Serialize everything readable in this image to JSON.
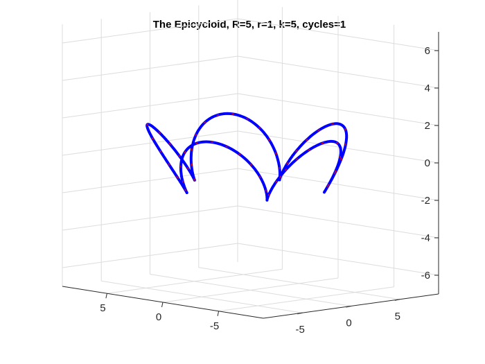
{
  "chart_data": {
    "type": "line3d",
    "title": "The Epicycloid, R=5, r=1, k=5, cycles=1",
    "xlim": [
      -9,
      9
    ],
    "ylim": [
      -9,
      9
    ],
    "zlim": [
      -7,
      7
    ],
    "xticks": [
      -5,
      0,
      5
    ],
    "yticks": [
      -5,
      0,
      5
    ],
    "zticks": [
      -6,
      -4,
      -2,
      0,
      2,
      4,
      6
    ],
    "grid": true,
    "view": "3d",
    "curve": {
      "kind": "epicycloid",
      "R": 5,
      "r": 1,
      "k": 5,
      "cycles": 1,
      "colors": [
        "#0000ff",
        "#ff0000"
      ]
    }
  }
}
